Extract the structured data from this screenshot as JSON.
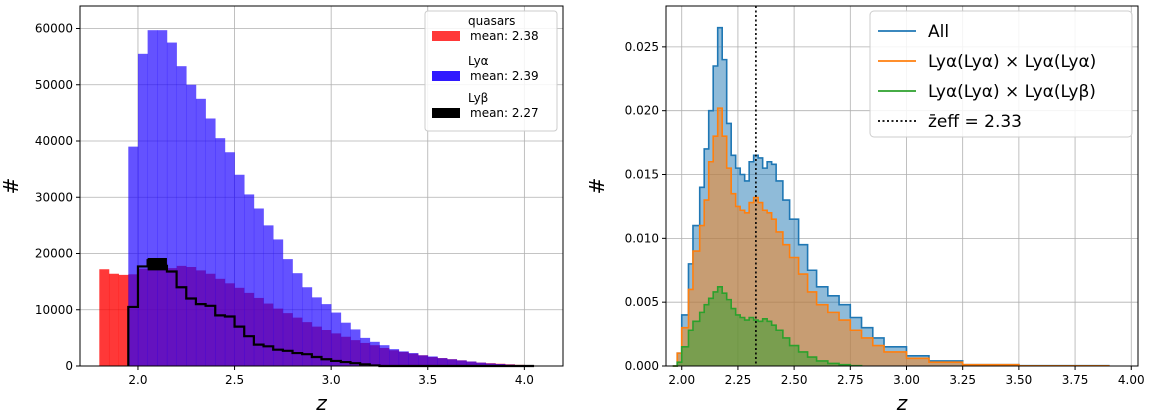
{
  "chart_data": [
    {
      "type": "bar",
      "xlabel": "z",
      "ylabel": "#",
      "xlim": [
        1.7,
        4.2
      ],
      "ylim": [
        0,
        64000
      ],
      "xticks": [
        "2.0",
        "2.5",
        "3.0",
        "3.5",
        "4.0"
      ],
      "yticks": [
        "0",
        "10000",
        "20000",
        "30000",
        "40000",
        "50000",
        "60000"
      ],
      "grid": true,
      "legend_position": "top-right",
      "bin_edges": [
        1.8,
        1.85,
        1.9,
        1.95,
        2.0,
        2.05,
        2.1,
        2.15,
        2.2,
        2.25,
        2.3,
        2.35,
        2.4,
        2.45,
        2.5,
        2.55,
        2.6,
        2.65,
        2.7,
        2.75,
        2.8,
        2.85,
        2.9,
        2.95,
        3.0,
        3.05,
        3.1,
        3.15,
        3.2,
        3.25,
        3.3,
        3.35,
        3.4,
        3.45,
        3.5,
        3.55,
        3.6,
        3.65,
        3.7,
        3.75,
        3.8,
        3.85,
        3.9,
        3.95,
        4.0,
        4.05
      ],
      "series": [
        {
          "name": "quasars",
          "mean_label": "mean: 2.38",
          "color": "#ff0000",
          "values": [
            17200,
            16400,
            16200,
            16300,
            17300,
            18500,
            18300,
            17400,
            17800,
            17600,
            17000,
            16400,
            15500,
            14700,
            13900,
            13000,
            12100,
            11100,
            10200,
            9400,
            8600,
            7800,
            7000,
            6400,
            5800,
            5200,
            4600,
            4100,
            3700,
            3200,
            2800,
            2500,
            2200,
            1900,
            1600,
            1400,
            1200,
            1000,
            800,
            600,
            500,
            400,
            300,
            200,
            100
          ]
        },
        {
          "name": "Lyα",
          "mean_label": "mean: 2.39",
          "color": "#1a00ff",
          "values": [
            0,
            0,
            0,
            39000,
            55500,
            59700,
            59700,
            57500,
            53300,
            50000,
            47500,
            44000,
            40500,
            38000,
            34000,
            30500,
            28000,
            25000,
            22500,
            19000,
            16500,
            14000,
            12200,
            11000,
            9500,
            7700,
            6500,
            5000,
            4300,
            3700,
            3000,
            2600,
            2300,
            1900,
            1700,
            1400,
            1200,
            1000,
            800,
            600,
            450,
            350,
            250,
            150,
            80
          ]
        },
        {
          "name": "Lyβ",
          "mean_label": "mean: 2.27",
          "color": "#000000",
          "values": [
            0,
            0,
            0,
            10500,
            17700,
            18800,
            17800,
            16800,
            14000,
            12000,
            11000,
            10700,
            9000,
            8800,
            7000,
            5300,
            3800,
            3500,
            2900,
            2700,
            2300,
            2100,
            1600,
            1200,
            900,
            700,
            500,
            300,
            100,
            0,
            0,
            0,
            0,
            0,
            0,
            0,
            0,
            0,
            0,
            0,
            0,
            0,
            0,
            0,
            0
          ]
        }
      ]
    },
    {
      "type": "area",
      "xlabel": "z",
      "ylabel": "#",
      "xlim": [
        1.93,
        4.03
      ],
      "ylim": [
        0,
        0.0282
      ],
      "xticks": [
        "2.00",
        "2.25",
        "2.50",
        "2.75",
        "3.00",
        "3.25",
        "3.50",
        "3.75",
        "4.00"
      ],
      "yticks": [
        "0.000",
        "0.005",
        "0.010",
        "0.015",
        "0.020",
        "0.025"
      ],
      "grid": true,
      "legend_position": "top-right",
      "z_eff": 2.33,
      "z_eff_label": "z̄eff = 2.33",
      "series": [
        {
          "name": "All",
          "color": "#1f77b4",
          "points": [
            [
              1.96,
              0
            ],
            [
              1.98,
              0.001
            ],
            [
              2.0,
              0.004
            ],
            [
              2.03,
              0.008
            ],
            [
              2.05,
              0.011
            ],
            [
              2.08,
              0.014
            ],
            [
              2.1,
              0.017
            ],
            [
              2.12,
              0.02
            ],
            [
              2.14,
              0.0235
            ],
            [
              2.16,
              0.0265
            ],
            [
              2.18,
              0.024
            ],
            [
              2.2,
              0.019
            ],
            [
              2.22,
              0.0165
            ],
            [
              2.24,
              0.0155
            ],
            [
              2.26,
              0.015
            ],
            [
              2.28,
              0.0145
            ],
            [
              2.3,
              0.016
            ],
            [
              2.32,
              0.0165
            ],
            [
              2.34,
              0.0163
            ],
            [
              2.36,
              0.0155
            ],
            [
              2.38,
              0.016
            ],
            [
              2.4,
              0.0158
            ],
            [
              2.42,
              0.0145
            ],
            [
              2.45,
              0.013
            ],
            [
              2.48,
              0.0115
            ],
            [
              2.52,
              0.0095
            ],
            [
              2.56,
              0.0075
            ],
            [
              2.6,
              0.0062
            ],
            [
              2.65,
              0.0055
            ],
            [
              2.7,
              0.0048
            ],
            [
              2.75,
              0.0038
            ],
            [
              2.8,
              0.003
            ],
            [
              2.85,
              0.0022
            ],
            [
              2.9,
              0.0015
            ],
            [
              3.0,
              0.0008
            ],
            [
              3.1,
              0.0004
            ],
            [
              3.25,
              0.0001
            ],
            [
              3.5,
              3e-05
            ],
            [
              3.9,
              0
            ]
          ]
        },
        {
          "name": "Lyα(Lyα) × Lyα(Lyα)",
          "color": "#ff7f0e",
          "points": [
            [
              1.96,
              0
            ],
            [
              1.98,
              0.001
            ],
            [
              2.0,
              0.003
            ],
            [
              2.03,
              0.006
            ],
            [
              2.05,
              0.009
            ],
            [
              2.08,
              0.011
            ],
            [
              2.1,
              0.013
            ],
            [
              2.12,
              0.016
            ],
            [
              2.14,
              0.018
            ],
            [
              2.16,
              0.0202
            ],
            [
              2.18,
              0.018
            ],
            [
              2.2,
              0.0155
            ],
            [
              2.22,
              0.0135
            ],
            [
              2.24,
              0.0125
            ],
            [
              2.26,
              0.0122
            ],
            [
              2.28,
              0.012
            ],
            [
              2.3,
              0.0128
            ],
            [
              2.32,
              0.0132
            ],
            [
              2.34,
              0.0128
            ],
            [
              2.36,
              0.0122
            ],
            [
              2.38,
              0.012
            ],
            [
              2.4,
              0.0115
            ],
            [
              2.42,
              0.0105
            ],
            [
              2.45,
              0.0095
            ],
            [
              2.48,
              0.0085
            ],
            [
              2.52,
              0.0072
            ],
            [
              2.56,
              0.0058
            ],
            [
              2.6,
              0.0048
            ],
            [
              2.65,
              0.0042
            ],
            [
              2.7,
              0.0036
            ],
            [
              2.75,
              0.0028
            ],
            [
              2.8,
              0.0022
            ],
            [
              2.85,
              0.0016
            ],
            [
              2.9,
              0.0011
            ],
            [
              3.0,
              0.0006
            ],
            [
              3.1,
              0.0003
            ],
            [
              3.25,
              0.0001
            ],
            [
              3.5,
              2e-05
            ],
            [
              3.9,
              0
            ]
          ]
        },
        {
          "name": "Lyα(Lyα) × Lyα(Lyβ)",
          "color": "#2ca02c",
          "points": [
            [
              1.96,
              0
            ],
            [
              1.98,
              0.0003
            ],
            [
              2.0,
              0.0015
            ],
            [
              2.03,
              0.0028
            ],
            [
              2.05,
              0.0035
            ],
            [
              2.08,
              0.0042
            ],
            [
              2.1,
              0.0048
            ],
            [
              2.12,
              0.0053
            ],
            [
              2.14,
              0.0058
            ],
            [
              2.16,
              0.0062
            ],
            [
              2.18,
              0.0057
            ],
            [
              2.2,
              0.0052
            ],
            [
              2.22,
              0.0045
            ],
            [
              2.24,
              0.004
            ],
            [
              2.26,
              0.0038
            ],
            [
              2.28,
              0.0036
            ],
            [
              2.3,
              0.0038
            ],
            [
              2.32,
              0.0036
            ],
            [
              2.34,
              0.0035
            ],
            [
              2.36,
              0.0037
            ],
            [
              2.38,
              0.0035
            ],
            [
              2.4,
              0.0032
            ],
            [
              2.42,
              0.0028
            ],
            [
              2.45,
              0.0022
            ],
            [
              2.48,
              0.0016
            ],
            [
              2.52,
              0.0011
            ],
            [
              2.56,
              0.0007
            ],
            [
              2.6,
              0.0004
            ],
            [
              2.65,
              0.0002
            ],
            [
              2.7,
              0.0001
            ],
            [
              2.75,
              3e-05
            ],
            [
              2.8,
              0
            ]
          ]
        }
      ]
    }
  ]
}
